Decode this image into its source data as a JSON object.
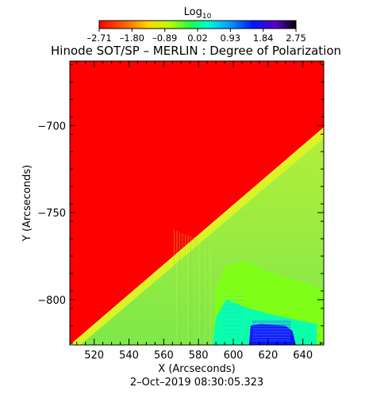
{
  "chart_data": {
    "type": "heatmap",
    "title": "Hinode SOT/SP – MERLIN : Degree of Polarization",
    "xlabel": "X (Arcseconds)",
    "ylabel": "Y (Arcseconds)",
    "timestamp": "2–Oct–2019 08:30:05.323",
    "xlim": [
      506,
      652
    ],
    "ylim": [
      -826,
      -663
    ],
    "x_ticks": [
      520,
      540,
      560,
      580,
      600,
      620,
      640
    ],
    "y_ticks": [
      -700,
      -750,
      -800
    ],
    "colorbar": {
      "label": "Log",
      "label_sub": "10",
      "min": -2.71,
      "max": 2.75,
      "tick_labels": [
        "–2.71",
        "–1.80",
        "–0.89",
        "0.02",
        "0.93",
        "1.84",
        "2.75"
      ],
      "tick_values": [
        -2.71,
        -1.8,
        -0.89,
        0.02,
        0.93,
        1.84,
        2.75
      ]
    },
    "regions": [
      {
        "name": "off-limb",
        "value": -2.71,
        "vertices": [
          [
            506,
            -663
          ],
          [
            652,
            -663
          ],
          [
            652,
            -701
          ],
          [
            506,
            -826
          ]
        ]
      },
      {
        "name": "limb-band",
        "value": -1.9,
        "vertices": [
          [
            652,
            -701
          ],
          [
            652,
            -707
          ],
          [
            512,
            -826
          ],
          [
            506,
            -826
          ]
        ]
      },
      {
        "name": "on-disk",
        "value": -0.9,
        "vertices": [
          [
            652,
            -707
          ],
          [
            652,
            -826
          ],
          [
            512,
            -826
          ]
        ]
      },
      {
        "name": "disk-center-green",
        "value": -0.55,
        "vertices": [
          [
            590,
            -793
          ],
          [
            596,
            -780
          ],
          [
            608,
            -778
          ],
          [
            620,
            -784
          ],
          [
            640,
            -790
          ],
          [
            652,
            -794
          ],
          [
            652,
            -826
          ],
          [
            588,
            -826
          ]
        ]
      },
      {
        "name": "plage-cyan",
        "value": 0.15,
        "vertices": [
          [
            588,
            -826
          ],
          [
            590,
            -810
          ],
          [
            596,
            -800
          ],
          [
            606,
            -804
          ],
          [
            620,
            -808
          ],
          [
            638,
            -812
          ],
          [
            648,
            -814
          ],
          [
            648,
            -826
          ]
        ]
      },
      {
        "name": "sunspot-blue",
        "value": 1.6,
        "vertices": [
          [
            609,
            -826
          ],
          [
            610,
            -815
          ],
          [
            616,
            -814
          ],
          [
            630,
            -815
          ],
          [
            634,
            -818
          ],
          [
            636,
            -826
          ]
        ]
      }
    ]
  }
}
